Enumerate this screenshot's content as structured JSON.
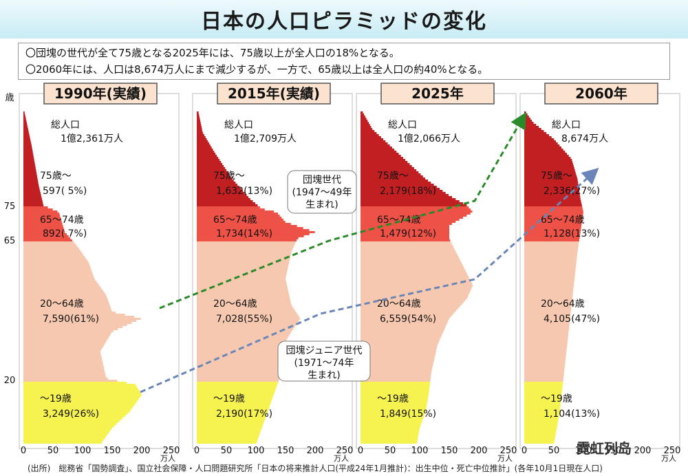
{
  "title": "日本の人口ピラミッドの変化",
  "notes": [
    "〇団塊の世代が全て75歳となる2025年には、75歳以上が全人口の18%となる。",
    "〇2060年には、人口は8,674万人にまで減少するが、一方で、65歳以上は全人口の約40%となる。"
  ],
  "footer": "(出所)　総務省「国勢調査」、国立社会保障・人口問題研究所「日本の将来推計人口(平成24年1月推計)：出生中位・死亡中位推計」(各年10月1日現在人口)",
  "watermark": "霓虹列岛",
  "y_axis": {
    "unit": "歳",
    "ticks": [
      "75",
      "65",
      "20"
    ]
  },
  "x_axis": {
    "ticks": [
      "0",
      "50",
      "100",
      "150",
      "200",
      "250"
    ],
    "unit": "万人"
  },
  "colors": {
    "age75plus": "#c21f22",
    "age65_74": "#ee5146",
    "age20_64": "#f6c8b0",
    "age0_19": "#f6f250",
    "arrow_dankai": "#2a8a2a",
    "arrow_junior": "#6a86b8"
  },
  "annotations": {
    "dankai": "団塊世代\n(1947～49年\n生まれ)",
    "junior": "団塊ジュニア世代\n(1971～74年\n生まれ)"
  },
  "chart_data": {
    "type": "bar",
    "categories": [
      "75歳～",
      "65～74歳",
      "20～64歳",
      "～19歳"
    ],
    "panels": [
      {
        "title": "1990年(実績)",
        "total_label": "総人口",
        "total_value": "1億2,361万人",
        "segments": [
          {
            "label": "75歳～",
            "value": "597( 5%)"
          },
          {
            "label": "65～74歳",
            "value": "892( 7%)"
          },
          {
            "label": "20～64歳",
            "value": "7,590(61%)"
          },
          {
            "label": "～19歳",
            "value": "3,249(26%)"
          }
        ]
      },
      {
        "title": "2015年(実績)",
        "total_label": "総人口",
        "total_value": "1億2,709万人",
        "segments": [
          {
            "label": "75歳～",
            "value": "1,632(13%)"
          },
          {
            "label": "65～74歳",
            "value": "1,734(14%)"
          },
          {
            "label": "20～64歳",
            "value": "7,028(55%)"
          },
          {
            "label": "～19歳",
            "value": "2,190(17%)"
          }
        ]
      },
      {
        "title": "2025年",
        "total_label": "総人口",
        "total_value": "1億2,066万人",
        "segments": [
          {
            "label": "75歳～",
            "value": "2,179(18%)"
          },
          {
            "label": "65～74歳",
            "value": "1,479(12%)"
          },
          {
            "label": "20～64歳",
            "value": "6,559(54%)"
          },
          {
            "label": "～19歳",
            "value": "1,849(15%)"
          }
        ]
      },
      {
        "title": "2060年",
        "total_label": "総人口",
        "total_value": "8,674万人",
        "segments": [
          {
            "label": "75歳～",
            "value": "2,336(27%)"
          },
          {
            "label": "65～74歳",
            "value": "1,128(13%)"
          },
          {
            "label": "20～64歳",
            "value": "4,105(47%)"
          },
          {
            "label": "～19歳",
            "value": "1,104(13%)"
          }
        ]
      }
    ]
  }
}
